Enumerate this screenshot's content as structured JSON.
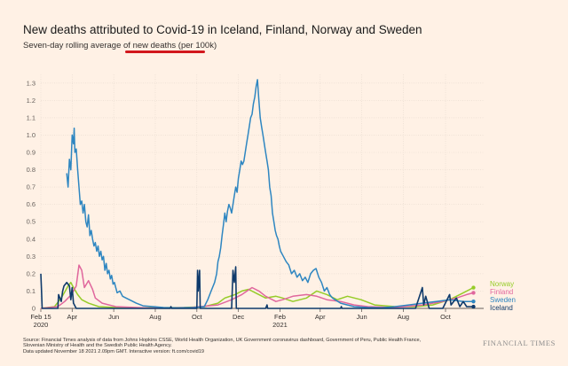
{
  "header": {
    "title": "New deaths attributed to Covid-19 in Iceland, Finland, Norway and Sweden",
    "subtitle": "Seven-day rolling average of new deaths (per 100k)"
  },
  "footer": {
    "source": "Source: Financial Times analysis of data from Johns Hopkins CSSE, World Health Organization, UK Government coronavirus dashboard, Government of Peru, Public Health France, Slovenian Ministry of Health and the Swedish Public Health Agency.",
    "updated": "Data updated November 18 2021 2.09pm GMT. Interactive version: ft.com/covid19",
    "brand": "FINANCIAL TIMES"
  },
  "colors": {
    "Norway": "#96cc28",
    "Finland": "#e0679d",
    "Sweden": "#2e86c1",
    "Iceland": "#0f3a6b",
    "background": "#fff1e5",
    "accent_underline": "#d2171c"
  },
  "chart_data": {
    "type": "line",
    "title": "New deaths attributed to Covid-19 in Iceland, Finland, Norway and Sweden",
    "subtitle": "Seven-day rolling average of new deaths (per 100k)",
    "xlabel": "",
    "ylabel": "",
    "ylim": [
      0,
      1.35
    ],
    "yticks": [
      0,
      0.1,
      0.2,
      0.3,
      0.4,
      0.5,
      0.6,
      0.7,
      0.8,
      0.9,
      1.0,
      1.1,
      1.2,
      1.3
    ],
    "ytick_labels": [
      "0",
      "0.1",
      "0.2",
      "0.3",
      "0.4",
      "0.5",
      "0.6",
      "0.7",
      "0.8",
      "0.9",
      "1.0",
      "1.1",
      "1.2",
      "1.3"
    ],
    "xlim": [
      0,
      650
    ],
    "xticks": [
      {
        "x": 0,
        "label": "Feb 15",
        "sub": "2020"
      },
      {
        "x": 46,
        "label": "Apr",
        "sub": ""
      },
      {
        "x": 107,
        "label": "Jun",
        "sub": ""
      },
      {
        "x": 168,
        "label": "Aug",
        "sub": ""
      },
      {
        "x": 229,
        "label": "Oct",
        "sub": ""
      },
      {
        "x": 290,
        "label": "Dec",
        "sub": ""
      },
      {
        "x": 351,
        "label": "Feb",
        "sub": "2021"
      },
      {
        "x": 410,
        "label": "Apr",
        "sub": ""
      },
      {
        "x": 471,
        "label": "Jun",
        "sub": ""
      },
      {
        "x": 532,
        "label": "Aug",
        "sub": ""
      },
      {
        "x": 594,
        "label": "Oct",
        "sub": ""
      }
    ],
    "x_unit": "days since Feb 15 2020",
    "legend_position": "right",
    "series": [
      {
        "name": "Norway",
        "points": [
          [
            0,
            0
          ],
          [
            20,
            0.01
          ],
          [
            30,
            0.06
          ],
          [
            36,
            0.1
          ],
          [
            40,
            0.13
          ],
          [
            44,
            0.15
          ],
          [
            48,
            0.12
          ],
          [
            54,
            0.08
          ],
          [
            60,
            0.05
          ],
          [
            70,
            0.03
          ],
          [
            85,
            0.01
          ],
          [
            110,
            0.005
          ],
          [
            160,
            0.003
          ],
          [
            210,
            0.005
          ],
          [
            240,
            0.01
          ],
          [
            260,
            0.03
          ],
          [
            270,
            0.06
          ],
          [
            285,
            0.08
          ],
          [
            295,
            0.1
          ],
          [
            305,
            0.11
          ],
          [
            315,
            0.09
          ],
          [
            330,
            0.06
          ],
          [
            345,
            0.07
          ],
          [
            355,
            0.06
          ],
          [
            370,
            0.04
          ],
          [
            390,
            0.06
          ],
          [
            405,
            0.1
          ],
          [
            420,
            0.08
          ],
          [
            435,
            0.05
          ],
          [
            450,
            0.07
          ],
          [
            470,
            0.05
          ],
          [
            490,
            0.02
          ],
          [
            520,
            0.01
          ],
          [
            550,
            0.01
          ],
          [
            575,
            0.02
          ],
          [
            600,
            0.05
          ],
          [
            620,
            0.09
          ],
          [
            635,
            0.12
          ]
        ]
      },
      {
        "name": "Finland",
        "points": [
          [
            0,
            0
          ],
          [
            25,
            0.01
          ],
          [
            35,
            0.04
          ],
          [
            45,
            0.08
          ],
          [
            52,
            0.13
          ],
          [
            56,
            0.25
          ],
          [
            60,
            0.22
          ],
          [
            64,
            0.12
          ],
          [
            70,
            0.16
          ],
          [
            76,
            0.11
          ],
          [
            80,
            0.06
          ],
          [
            90,
            0.03
          ],
          [
            110,
            0.01
          ],
          [
            160,
            0.002
          ],
          [
            220,
            0.005
          ],
          [
            260,
            0.02
          ],
          [
            280,
            0.05
          ],
          [
            295,
            0.08
          ],
          [
            310,
            0.12
          ],
          [
            320,
            0.1
          ],
          [
            330,
            0.07
          ],
          [
            345,
            0.04
          ],
          [
            355,
            0.05
          ],
          [
            370,
            0.07
          ],
          [
            390,
            0.08
          ],
          [
            405,
            0.07
          ],
          [
            420,
            0.05
          ],
          [
            440,
            0.04
          ],
          [
            460,
            0.02
          ],
          [
            480,
            0.01
          ],
          [
            520,
            0.005
          ],
          [
            560,
            0.02
          ],
          [
            590,
            0.04
          ],
          [
            610,
            0.06
          ],
          [
            625,
            0.08
          ],
          [
            635,
            0.09
          ]
        ]
      },
      {
        "name": "Sweden",
        "points": [
          [
            38,
            0.78
          ],
          [
            40,
            0.7
          ],
          [
            42,
            0.86
          ],
          [
            44,
            0.8
          ],
          [
            46,
            1.0
          ],
          [
            48,
            0.95
          ],
          [
            49,
            1.04
          ],
          [
            50,
            0.9
          ],
          [
            52,
            0.92
          ],
          [
            54,
            0.8
          ],
          [
            56,
            0.7
          ],
          [
            58,
            0.6
          ],
          [
            60,
            0.62
          ],
          [
            62,
            0.55
          ],
          [
            64,
            0.6
          ],
          [
            66,
            0.5
          ],
          [
            68,
            0.47
          ],
          [
            70,
            0.54
          ],
          [
            72,
            0.42
          ],
          [
            74,
            0.45
          ],
          [
            76,
            0.4
          ],
          [
            78,
            0.36
          ],
          [
            80,
            0.38
          ],
          [
            82,
            0.33
          ],
          [
            84,
            0.36
          ],
          [
            86,
            0.3
          ],
          [
            88,
            0.33
          ],
          [
            90,
            0.28
          ],
          [
            92,
            0.3
          ],
          [
            94,
            0.22
          ],
          [
            96,
            0.26
          ],
          [
            98,
            0.2
          ],
          [
            100,
            0.22
          ],
          [
            102,
            0.17
          ],
          [
            104,
            0.19
          ],
          [
            106,
            0.14
          ],
          [
            108,
            0.15
          ],
          [
            112,
            0.09
          ],
          [
            116,
            0.1
          ],
          [
            120,
            0.07
          ],
          [
            125,
            0.06
          ],
          [
            130,
            0.05
          ],
          [
            140,
            0.03
          ],
          [
            150,
            0.015
          ],
          [
            165,
            0.01
          ],
          [
            180,
            0.005
          ],
          [
            200,
            0.003
          ],
          [
            225,
            0.005
          ],
          [
            240,
            0.01
          ],
          [
            245,
            0.05
          ],
          [
            250,
            0.1
          ],
          [
            255,
            0.15
          ],
          [
            258,
            0.2
          ],
          [
            260,
            0.27
          ],
          [
            262,
            0.3
          ],
          [
            264,
            0.35
          ],
          [
            266,
            0.42
          ],
          [
            268,
            0.48
          ],
          [
            270,
            0.55
          ],
          [
            272,
            0.5
          ],
          [
            274,
            0.56
          ],
          [
            276,
            0.6
          ],
          [
            278,
            0.58
          ],
          [
            280,
            0.55
          ],
          [
            282,
            0.6
          ],
          [
            284,
            0.65
          ],
          [
            286,
            0.7
          ],
          [
            288,
            0.67
          ],
          [
            290,
            0.75
          ],
          [
            292,
            0.8
          ],
          [
            294,
            0.85
          ],
          [
            296,
            0.83
          ],
          [
            298,
            0.85
          ],
          [
            300,
            0.9
          ],
          [
            302,
            0.95
          ],
          [
            304,
            1.0
          ],
          [
            306,
            1.05
          ],
          [
            308,
            1.1
          ],
          [
            310,
            1.12
          ],
          [
            312,
            1.18
          ],
          [
            314,
            1.22
          ],
          [
            316,
            1.28
          ],
          [
            318,
            1.32
          ],
          [
            320,
            1.2
          ],
          [
            322,
            1.1
          ],
          [
            324,
            1.05
          ],
          [
            326,
            1.0
          ],
          [
            328,
            0.95
          ],
          [
            330,
            0.9
          ],
          [
            332,
            0.85
          ],
          [
            334,
            0.8
          ],
          [
            336,
            0.7
          ],
          [
            338,
            0.65
          ],
          [
            340,
            0.55
          ],
          [
            342,
            0.5
          ],
          [
            344,
            0.45
          ],
          [
            346,
            0.42
          ],
          [
            348,
            0.4
          ],
          [
            350,
            0.36
          ],
          [
            352,
            0.33
          ],
          [
            356,
            0.3
          ],
          [
            360,
            0.27
          ],
          [
            364,
            0.25
          ],
          [
            368,
            0.2
          ],
          [
            372,
            0.22
          ],
          [
            376,
            0.18
          ],
          [
            380,
            0.2
          ],
          [
            384,
            0.16
          ],
          [
            388,
            0.18
          ],
          [
            392,
            0.15
          ],
          [
            396,
            0.2
          ],
          [
            400,
            0.22
          ],
          [
            404,
            0.23
          ],
          [
            408,
            0.18
          ],
          [
            412,
            0.15
          ],
          [
            416,
            0.1
          ],
          [
            420,
            0.12
          ],
          [
            424,
            0.08
          ],
          [
            428,
            0.06
          ],
          [
            432,
            0.05
          ],
          [
            440,
            0.03
          ],
          [
            450,
            0.02
          ],
          [
            460,
            0.01
          ],
          [
            480,
            0.005
          ],
          [
            500,
            0.003
          ],
          [
            520,
            0.01
          ],
          [
            540,
            0.02
          ],
          [
            560,
            0.03
          ],
          [
            580,
            0.04
          ],
          [
            600,
            0.05
          ],
          [
            620,
            0.04
          ],
          [
            635,
            0.04
          ]
        ]
      },
      {
        "name": "Iceland",
        "points": [
          [
            0,
            0.2
          ],
          [
            1,
            0.1
          ],
          [
            2,
            0
          ],
          [
            25,
            0
          ],
          [
            26,
            0.08
          ],
          [
            30,
            0.04
          ],
          [
            32,
            0.1
          ],
          [
            34,
            0.13
          ],
          [
            38,
            0.15
          ],
          [
            42,
            0.13
          ],
          [
            44,
            0.05
          ],
          [
            46,
            0.12
          ],
          [
            48,
            0.03
          ],
          [
            52,
            0
          ],
          [
            150,
            0
          ],
          [
            190,
            0
          ],
          [
            191,
            0.01
          ],
          [
            192,
            0
          ],
          [
            229,
            0
          ],
          [
            230,
            0.22
          ],
          [
            231,
            0.1
          ],
          [
            233,
            0.22
          ],
          [
            234,
            0
          ],
          [
            280,
            0
          ],
          [
            282,
            0.22
          ],
          [
            284,
            0.15
          ],
          [
            286,
            0.24
          ],
          [
            287,
            0
          ],
          [
            330,
            0
          ],
          [
            332,
            0.02
          ],
          [
            333,
            0
          ],
          [
            440,
            0
          ],
          [
            441,
            0.01
          ],
          [
            442,
            0
          ],
          [
            530,
            0
          ],
          [
            550,
            0
          ],
          [
            560,
            0.12
          ],
          [
            562,
            0.02
          ],
          [
            565,
            0.07
          ],
          [
            570,
            0
          ],
          [
            590,
            0
          ],
          [
            600,
            0.08
          ],
          [
            602,
            0.02
          ],
          [
            610,
            0.06
          ],
          [
            615,
            0.01
          ],
          [
            620,
            0.04
          ],
          [
            625,
            0.01
          ],
          [
            635,
            0.01
          ]
        ]
      }
    ]
  }
}
